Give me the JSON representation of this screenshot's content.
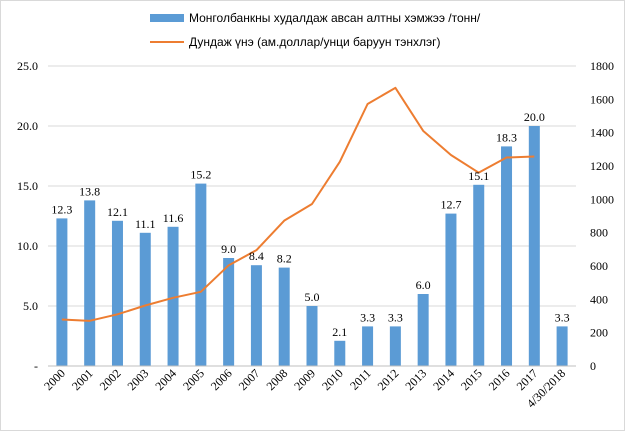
{
  "chart_data": {
    "type": "bar+line",
    "categories": [
      "2000",
      "2001",
      "2002",
      "2003",
      "2004",
      "2005",
      "2006",
      "2007",
      "2008",
      "2009",
      "2010",
      "2011",
      "2012",
      "2013",
      "2014",
      "2015",
      "2016",
      "2017",
      "4/30/2018"
    ],
    "series": [
      {
        "name": "Монголбанкны худалдаж  авсан алтны хэмжээ /тонн/",
        "type": "bar",
        "axis": "left",
        "color": "#5b9bd5",
        "values": [
          12.3,
          13.8,
          12.1,
          11.1,
          11.6,
          15.2,
          9.0,
          8.4,
          8.2,
          5.0,
          2.1,
          3.3,
          3.3,
          6.0,
          12.7,
          15.1,
          18.3,
          20.0,
          3.3
        ],
        "labels": [
          "12.3",
          "13.8",
          "12.1",
          "11.1",
          "11.6",
          "15.2",
          "9.0",
          "8.4",
          "8.2",
          "5.0",
          "2.1",
          "3.3",
          "3.3",
          "6.0",
          "12.7",
          "15.1",
          "18.3",
          "20.0",
          "3.3"
        ]
      },
      {
        "name": "Дундаж үнэ (ам.доллар/унци баруун тэнхлэг)",
        "type": "line",
        "axis": "right",
        "color": "#ed7d31",
        "values": [
          279,
          271,
          310,
          363,
          409,
          445,
          604,
          695,
          872,
          972,
          1225,
          1572,
          1669,
          1411,
          1266,
          1160,
          1251,
          1257,
          null
        ]
      }
    ],
    "y_left": {
      "ylim": [
        0,
        25
      ],
      "ticks": [
        "-",
        "5.0",
        "10.0",
        "15.0",
        "20.0",
        "25.0"
      ]
    },
    "y_right": {
      "ylim": [
        0,
        1800
      ],
      "ticks": [
        "0",
        "200",
        "400",
        "600",
        "800",
        "1000",
        "1200",
        "1400",
        "1600",
        "1800"
      ]
    },
    "grid": true,
    "legend_position": "top"
  }
}
